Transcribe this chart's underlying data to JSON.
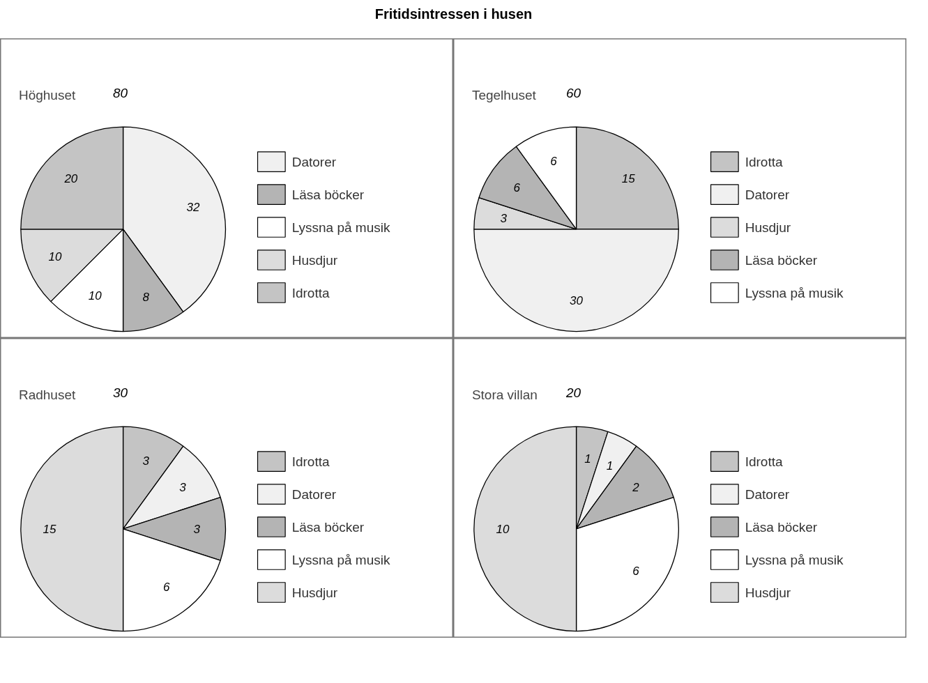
{
  "chart_data": [
    {
      "type": "pie",
      "title": "Höghuset",
      "subtitle": "80",
      "annotations": [
        "Fritidsintressen i husen"
      ],
      "categories": [
        "Datorer",
        "Läsa böcker",
        "Lyssna på musik",
        "Husdjur",
        "Idrotta"
      ],
      "values": [
        32,
        8,
        10,
        10,
        20
      ],
      "colors": [
        "#f0f0f0",
        "#b4b4b4",
        "#ffffff",
        "#dcdcdc",
        "#c4c4c4"
      ],
      "data_labels": true,
      "legend": "right"
    },
    {
      "type": "pie",
      "title": "Tegelhuset",
      "subtitle": "60",
      "categories": [
        "Idrotta",
        "Datorer",
        "Husdjur",
        "Läsa böcker",
        "Lyssna på musik"
      ],
      "values": [
        15,
        30,
        3,
        6,
        6
      ],
      "colors": [
        "#c4c4c4",
        "#f0f0f0",
        "#dcdcdc",
        "#b4b4b4",
        "#ffffff"
      ],
      "data_labels": true,
      "legend": "right"
    },
    {
      "type": "pie",
      "title": "Radhuset",
      "subtitle": "30",
      "categories": [
        "Idrotta",
        "Datorer",
        "Läsa böcker",
        "Lyssna på musik",
        "Husdjur"
      ],
      "values": [
        3,
        3,
        3,
        6,
        15
      ],
      "colors": [
        "#c4c4c4",
        "#f0f0f0",
        "#b4b4b4",
        "#ffffff",
        "#dcdcdc"
      ],
      "data_labels": true,
      "legend": "right"
    },
    {
      "type": "pie",
      "title": "Stora villan",
      "subtitle": "20",
      "categories": [
        "Idrotta",
        "Datorer",
        "Läsa böcker",
        "Lyssna på musik",
        "Husdjur"
      ],
      "values": [
        1,
        1,
        2,
        6,
        10
      ],
      "colors": [
        "#c4c4c4",
        "#f0f0f0",
        "#b4b4b4",
        "#ffffff",
        "#dcdcdc"
      ],
      "data_labels": true,
      "legend": "right"
    }
  ]
}
